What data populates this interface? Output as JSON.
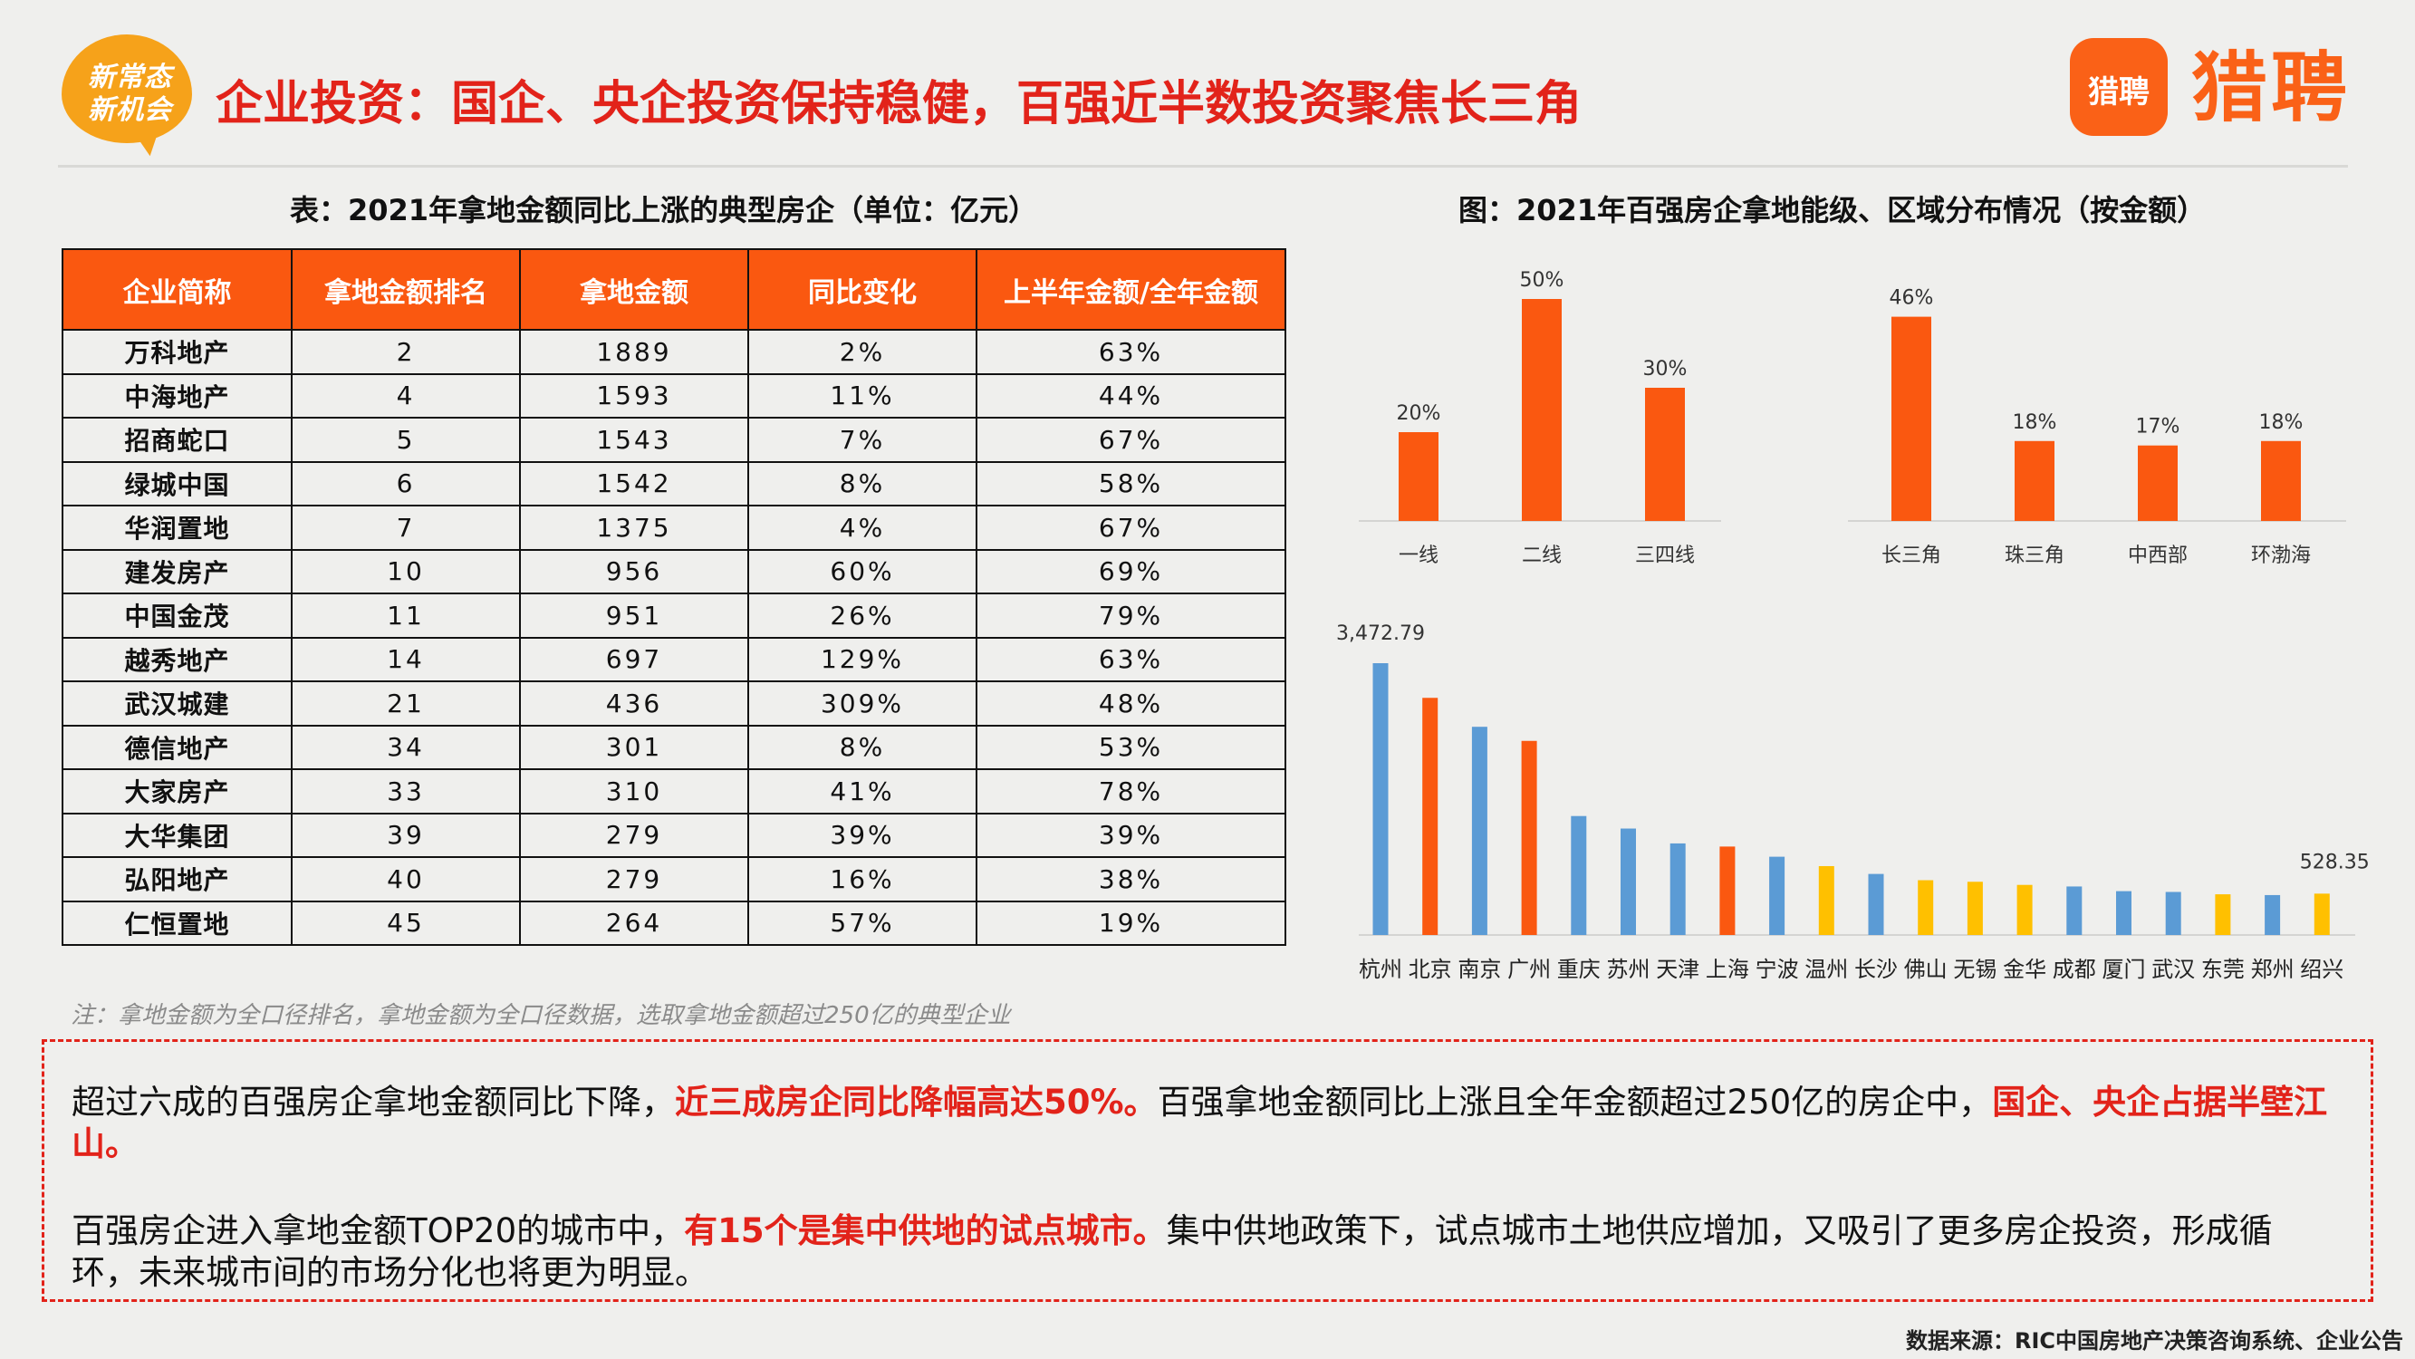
{
  "badge": {
    "line1": "新常态",
    "line2": "新机会"
  },
  "title": "企业投资：国企、央企投资保持稳健，百强近半数投资聚焦长三角",
  "logo": {
    "icon_text": "猎聘",
    "word": "猎聘"
  },
  "colors": {
    "accent": "#e2231a",
    "header_orange": "#fa5810",
    "bar_orange": "#fa5810",
    "bar_blue": "#5b9bd5",
    "bar_yellow": "#ffc000"
  },
  "table": {
    "caption": "表：2021年拿地金额同比上涨的典型房企（单位：亿元）",
    "headers": [
      "企业简称",
      "拿地金额排名",
      "拿地金额",
      "同比变化",
      "上半年金额/全年金额"
    ],
    "rows": [
      [
        "万科地产",
        "2",
        "1889",
        "2%",
        "63%"
      ],
      [
        "中海地产",
        "4",
        "1593",
        "11%",
        "44%"
      ],
      [
        "招商蛇口",
        "5",
        "1543",
        "7%",
        "67%"
      ],
      [
        "绿城中国",
        "6",
        "1542",
        "8%",
        "58%"
      ],
      [
        "华润置地",
        "7",
        "1375",
        "4%",
        "67%"
      ],
      [
        "建发房产",
        "10",
        "956",
        "60%",
        "69%"
      ],
      [
        "中国金茂",
        "11",
        "951",
        "26%",
        "79%"
      ],
      [
        "越秀地产",
        "14",
        "697",
        "129%",
        "63%"
      ],
      [
        "武汉城建",
        "21",
        "436",
        "309%",
        "48%"
      ],
      [
        "德信地产",
        "34",
        "301",
        "8%",
        "53%"
      ],
      [
        "大家房产",
        "33",
        "310",
        "41%",
        "78%"
      ],
      [
        "大华集团",
        "39",
        "279",
        "39%",
        "39%"
      ],
      [
        "弘阳地产",
        "40",
        "279",
        "16%",
        "38%"
      ],
      [
        "仁恒置地",
        "45",
        "264",
        "57%",
        "19%"
      ]
    ],
    "note": "注：拿地金额为全口径排名，拿地金额为全口径数据，选取拿地金额超过250亿的典型企业"
  },
  "chart_caption": "图：2021年百强房企拿地能级、区域分布情况（按金额）",
  "chart_data": [
    {
      "type": "bar",
      "categories": [
        "一线",
        "二线",
        "三四线",
        "长三角",
        "珠三角",
        "中西部",
        "环渤海"
      ],
      "values": [
        20,
        50,
        30,
        46,
        18,
        17,
        18
      ],
      "labels": [
        "20%",
        "50%",
        "30%",
        "46%",
        "18%",
        "17%",
        "18%"
      ],
      "ylim": [
        0,
        50
      ],
      "title": "",
      "xlabel": "",
      "ylabel": ""
    },
    {
      "type": "bar",
      "categories": [
        "杭州",
        "北京",
        "南京",
        "广州",
        "重庆",
        "苏州",
        "天津",
        "上海",
        "宁波",
        "温州",
        "长沙",
        "佛山",
        "无锡",
        "金华",
        "成都",
        "厦门",
        "武汉",
        "东莞",
        "郑州",
        "绍兴"
      ],
      "values": [
        3472.79,
        3030,
        2660,
        2480,
        1520,
        1360,
        1170,
        1130,
        1000,
        880,
        780,
        700,
        680,
        640,
        620,
        560,
        550,
        520,
        510,
        528.35
      ],
      "colors": [
        "blue",
        "orange",
        "blue",
        "orange",
        "blue",
        "blue",
        "blue",
        "orange",
        "blue",
        "yellow",
        "blue",
        "yellow",
        "yellow",
        "yellow",
        "blue",
        "blue",
        "blue",
        "yellow",
        "blue",
        "yellow"
      ],
      "value_labels": {
        "first": "3,472.79",
        "last": "528.35"
      },
      "ylim": [
        0,
        3472.79
      ],
      "title": "",
      "xlabel": "",
      "ylabel": ""
    }
  ],
  "summary": {
    "p1": [
      {
        "text": "超过六成的百强房企拿地金额同比下降，",
        "hl": false
      },
      {
        "text": "近三成房企同比降幅高达50%。",
        "hl": true
      },
      {
        "text": "百强拿地金额同比上涨且全年金额超过250亿的房企中，",
        "hl": false
      },
      {
        "text": "国企、央企占据半壁江山。",
        "hl": true
      }
    ],
    "p2": [
      {
        "text": "百强房企进入拿地金额TOP20的城市中，",
        "hl": false
      },
      {
        "text": "有15个是集中供地的试点城市。",
        "hl": true
      },
      {
        "text": "集中供地政策下，试点城市土地供应增加，又吸引了更多房企投资，形成循环，未来城市间的市场分化也将更为明显。",
        "hl": false
      }
    ]
  },
  "source": "数据来源：RIC中国房地产决策咨询系统、企业公告"
}
